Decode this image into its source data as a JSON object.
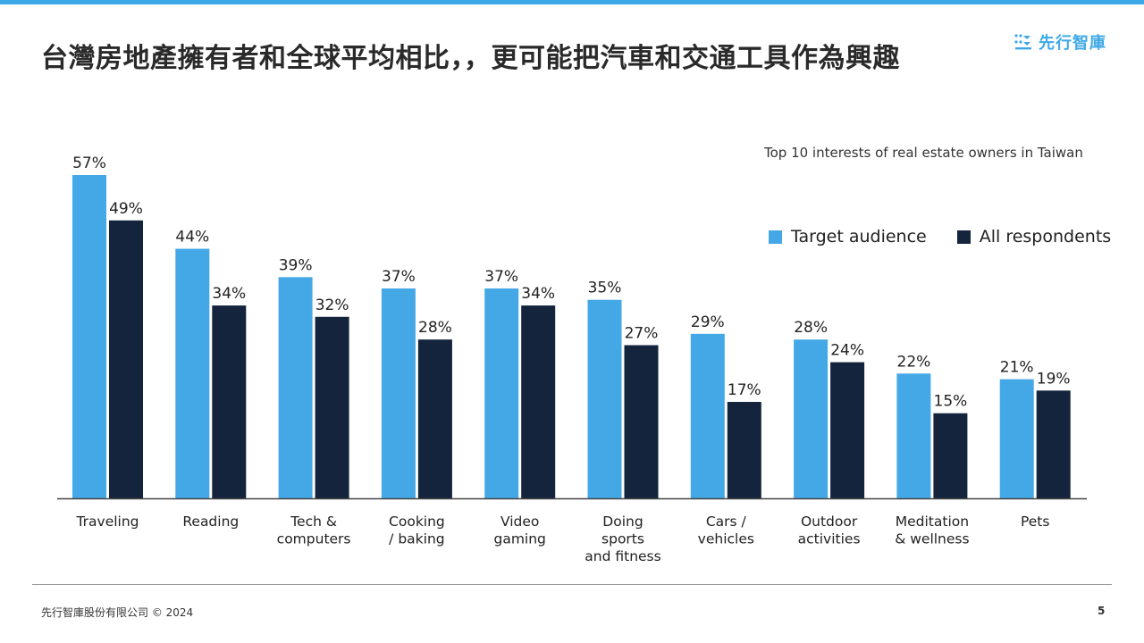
{
  "header": {
    "title": "台灣房地產擁有者和全球平均相比，，更可能把汽車和交通工具作為興趣",
    "brand_name": "先行智庫",
    "brand_icon": "dots-stack-icon",
    "accent_color": "#3ea8e6"
  },
  "chart_data": {
    "type": "bar",
    "title": "Top 10 interests of real estate owners in Taiwan",
    "categories": [
      [
        "Traveling"
      ],
      [
        "Reading"
      ],
      [
        "Tech &",
        "computers"
      ],
      [
        "Cooking",
        "/ baking"
      ],
      [
        "Video",
        "gaming"
      ],
      [
        "Doing",
        "sports",
        "and fitness"
      ],
      [
        "Cars /",
        "vehicles"
      ],
      [
        "Outdoor",
        "activities"
      ],
      [
        "Meditation",
        "& wellness"
      ],
      [
        "Pets"
      ]
    ],
    "series": [
      {
        "name": "Target audience",
        "color": "#45a8e6",
        "values": [
          57,
          44,
          39,
          37,
          37,
          35,
          29,
          28,
          22,
          21
        ]
      },
      {
        "name": "All respondents",
        "color": "#14243d",
        "values": [
          49,
          34,
          32,
          28,
          34,
          27,
          17,
          24,
          15,
          19
        ]
      }
    ],
    "value_suffix": "%",
    "ylim": [
      0,
      60
    ],
    "grid": false,
    "legend_position": "top-right"
  },
  "footer": {
    "company": "先行智庫股份有限公司 © 2024",
    "page_number": "5"
  }
}
